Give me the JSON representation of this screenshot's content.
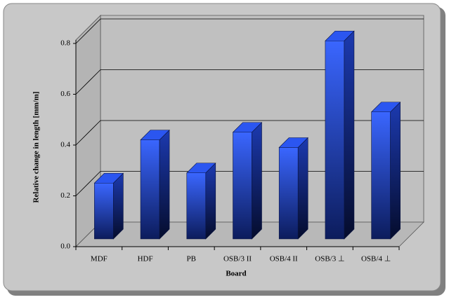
{
  "chart_data": {
    "type": "bar3d",
    "x_label": "Board",
    "y_label": "Relative change in length [mm/m]",
    "categories": [
      "MDF",
      "HDF",
      "PB",
      "OSB/3 II",
      "OSB/4 II",
      "OSB/3 ⊥",
      "OSB/4 ⊥"
    ],
    "values": [
      0.22,
      0.39,
      0.26,
      0.42,
      0.36,
      0.78,
      0.5
    ],
    "color": "#2b56f0",
    "ylim": [
      0,
      0.8
    ],
    "yticks": [
      {
        "value": 0,
        "label": "0.0"
      },
      0.2,
      0.4,
      0.6,
      0.8
    ],
    "grid": true
  }
}
